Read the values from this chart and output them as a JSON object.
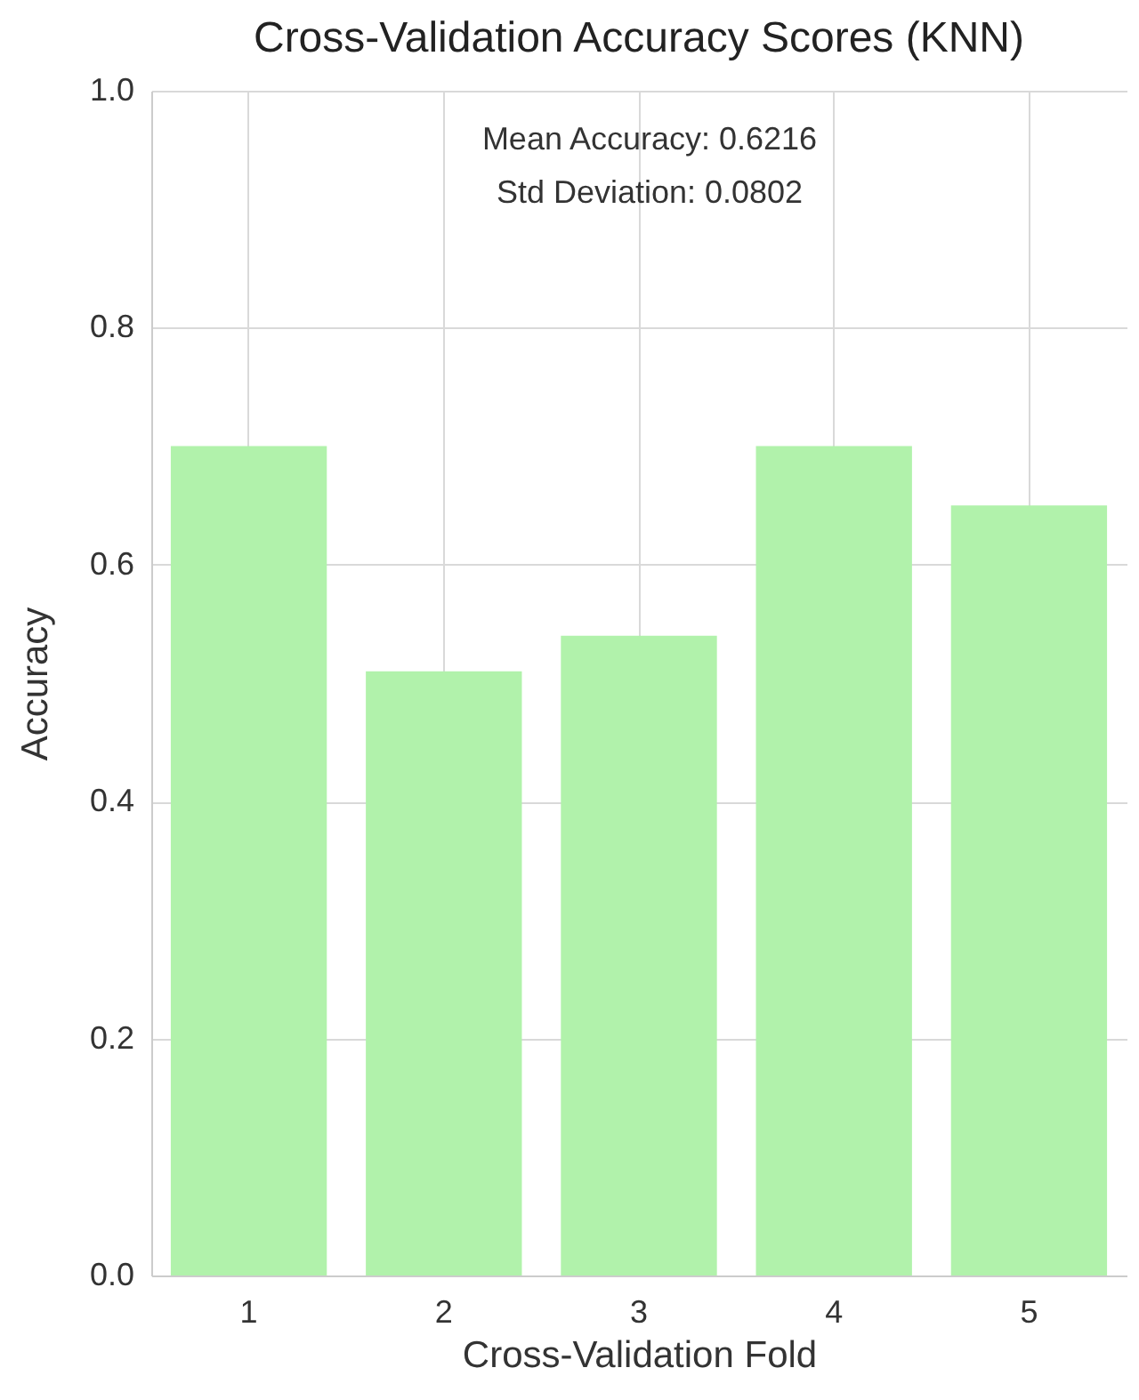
{
  "chart_data": {
    "type": "bar",
    "title": "Cross-Validation Accuracy Scores (KNN)",
    "xlabel": "Cross-Validation Fold",
    "ylabel": "Accuracy",
    "categories": [
      "1",
      "2",
      "3",
      "4",
      "5"
    ],
    "values": [
      0.7,
      0.51,
      0.54,
      0.7,
      0.65
    ],
    "color": "#b1f2ab",
    "ylim": [
      0,
      1
    ],
    "yticks": [
      {
        "value": 0,
        "label": "0.0"
      },
      {
        "value": 0.2,
        "label": "0.2"
      },
      {
        "value": 0.4,
        "label": "0.4"
      },
      {
        "value": 0.6,
        "label": "0.6"
      },
      {
        "value": 0.8,
        "label": "0.8"
      },
      {
        "value": 1,
        "label": "1.0"
      }
    ],
    "grid": true,
    "annotations": [
      "Mean Accuracy: 0.6216",
      "Std Deviation: 0.0802"
    ]
  }
}
